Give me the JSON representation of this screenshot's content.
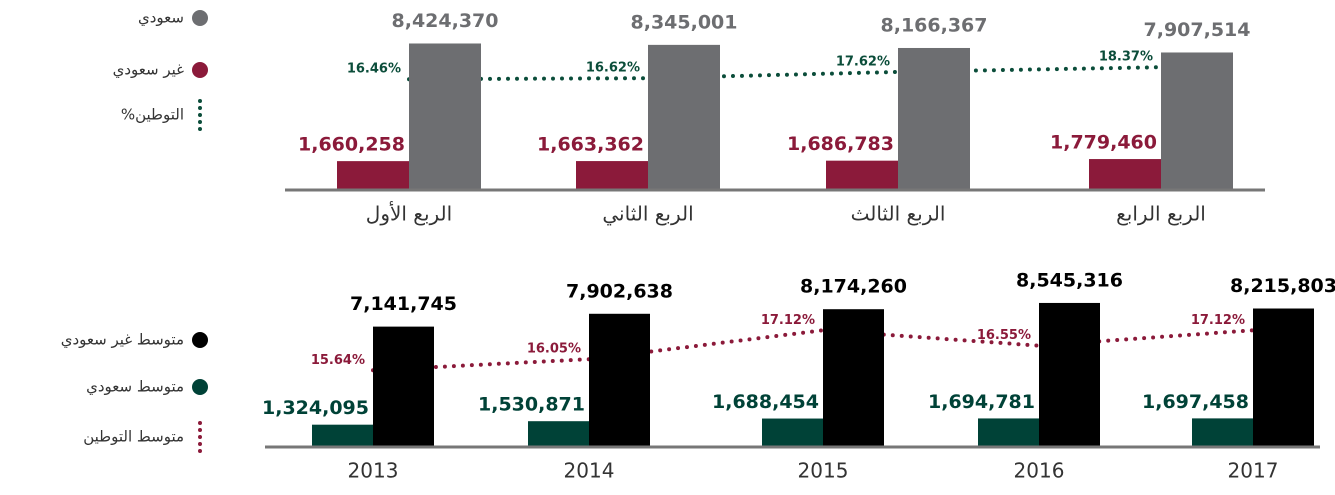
{
  "chart_data": [
    {
      "type": "bar",
      "categories": [
        "الربع الأول",
        "الربع الثاني",
        "الربع الثالث",
        "الربع الرابع"
      ],
      "series": [
        {
          "name": "غير سعودي",
          "color": "#8b1a3a",
          "values": [
            1660258,
            1663362,
            1686783,
            1779460
          ],
          "value_labels": [
            "1,660,258",
            "1,663,362",
            "1,686,783",
            "1,779,460"
          ]
        },
        {
          "name": "سعودي",
          "color": "#6d6e71",
          "values": [
            8424370,
            8345001,
            8166367,
            7907514
          ],
          "value_labels": [
            "8,424,370",
            "8,345,001",
            "8,166,367",
            "7,907,514"
          ]
        },
        {
          "name": "%التوطين",
          "type": "line",
          "axis": "y2",
          "color": "#0b4d3a",
          "values": [
            16.46,
            16.62,
            17.62,
            18.37
          ],
          "value_labels": [
            "16.46%",
            "16.62%",
            "17.62%",
            "18.37%"
          ]
        }
      ],
      "ylim": [
        0,
        9200000
      ],
      "y2lim": [
        -1.2,
        24.3
      ]
    },
    {
      "type": "bar",
      "categories": [
        "2013",
        "2014",
        "2015",
        "2016",
        "2017"
      ],
      "series": [
        {
          "name": "متوسط سعودي",
          "color": "#004237",
          "values": [
            1324095,
            1530871,
            1688454,
            1694781,
            1697458
          ],
          "value_labels": [
            "1,324,095",
            "1,530,871",
            "1,688,454",
            "1,694,781",
            "1,697,458"
          ]
        },
        {
          "name": "متوسط غير سعودي",
          "color": "#000000",
          "values": [
            7141745,
            7902638,
            8174260,
            8545316,
            8215803
          ],
          "value_labels": [
            "7,141,745",
            "7,902,638",
            "8,174,260",
            "8,545,316",
            "8,215,803"
          ]
        },
        {
          "name": "متوسط التوطين",
          "type": "line",
          "axis": "y2",
          "color": "#8b1a3a",
          "values": [
            15.64,
            16.05,
            17.12,
            16.55,
            17.12
          ],
          "value_labels": [
            "15.64%",
            "16.05%",
            "17.12%",
            "16.55%",
            "17.12%"
          ]
        }
      ],
      "ylim": [
        0,
        10500000
      ],
      "y2lim": [
        12.8,
        19.35
      ]
    }
  ]
}
